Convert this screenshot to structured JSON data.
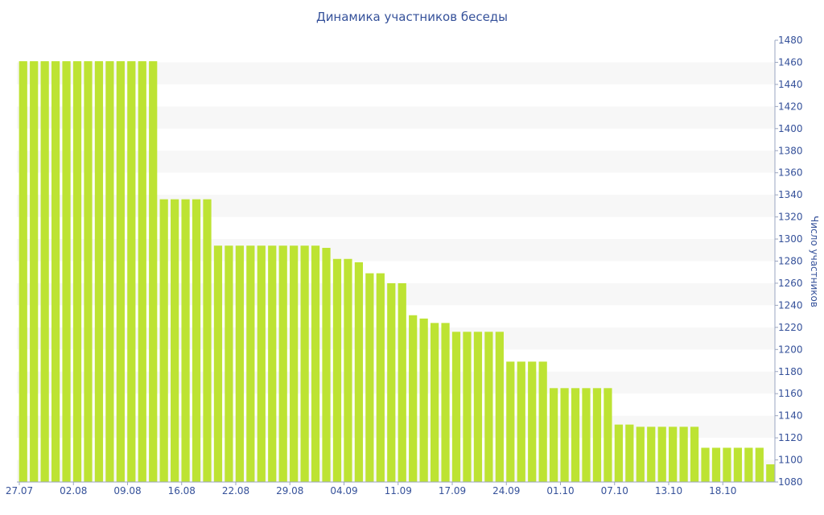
{
  "chart_data": {
    "type": "bar",
    "title": "Динамика участников беседы",
    "xlabel": "",
    "ylabel": "Число участников",
    "ylim": [
      1080,
      1480
    ],
    "y_ticks": [
      1080,
      1100,
      1120,
      1140,
      1160,
      1180,
      1200,
      1220,
      1240,
      1260,
      1280,
      1300,
      1320,
      1340,
      1360,
      1380,
      1400,
      1420,
      1440,
      1460,
      1480
    ],
    "x_tick_labels": [
      "27.07",
      "02.08",
      "09.08",
      "16.08",
      "22.08",
      "29.08",
      "04.09",
      "11.09",
      "17.09",
      "24.09",
      "01.10",
      "07.10",
      "13.10",
      "18.10"
    ],
    "y_axis_position": "right",
    "grid": "alternating horizontal bands",
    "bar_color": "#bde333",
    "values": [
      1461,
      1461,
      1461,
      1461,
      1461,
      1461,
      1461,
      1461,
      1461,
      1461,
      1461,
      1461,
      1461,
      1336,
      1336,
      1336,
      1336,
      1336,
      1294,
      1294,
      1294,
      1294,
      1294,
      1294,
      1294,
      1294,
      1294,
      1294,
      1292,
      1282,
      1282,
      1279,
      1269,
      1269,
      1260,
      1260,
      1231,
      1228,
      1224,
      1224,
      1216,
      1216,
      1216,
      1216,
      1216,
      1189,
      1189,
      1189,
      1189,
      1165,
      1165,
      1165,
      1165,
      1165,
      1165,
      1132,
      1132,
      1130,
      1130,
      1130,
      1130,
      1130,
      1130,
      1111,
      1111,
      1111,
      1111,
      1111,
      1111,
      1096
    ]
  }
}
